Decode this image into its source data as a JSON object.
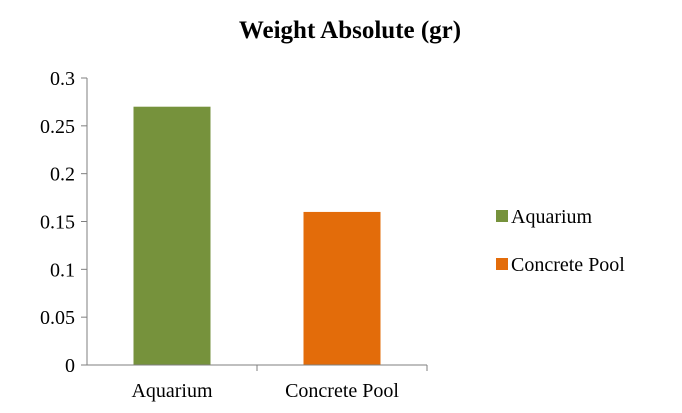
{
  "chart_data": {
    "type": "bar",
    "title": "Weight Absolute (gr)",
    "xlabel": "",
    "ylabel": "",
    "categories": [
      "Aquarium",
      "Concrete Pool"
    ],
    "values": [
      0.27,
      0.16
    ],
    "colors": [
      "#76923c",
      "#e36c0a"
    ],
    "ylim": [
      0,
      0.3
    ],
    "yticks": [
      0,
      0.05,
      0.1,
      0.15,
      0.2,
      0.25,
      0.3
    ],
    "ytick_labels": [
      "0",
      "0.05",
      "0.1",
      "0.15",
      "0.2",
      "0.25",
      "0.3"
    ],
    "grid": false,
    "legend_position": "right",
    "legend": [
      {
        "label": "Aquarium",
        "color": "#76923c"
      },
      {
        "label": "Concrete Pool",
        "color": "#e36c0a"
      }
    ]
  }
}
